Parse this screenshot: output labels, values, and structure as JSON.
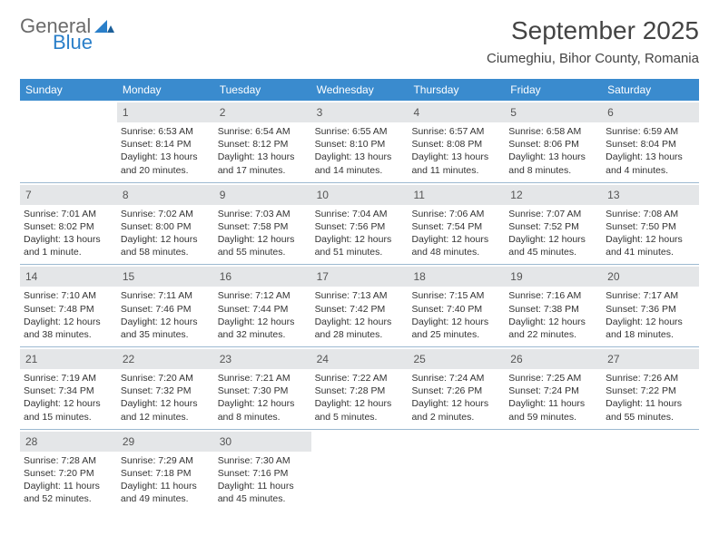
{
  "logo": {
    "general": "General",
    "blue": "Blue",
    "tri_color": "#2a7fc9"
  },
  "colors": {
    "header_bg": "#3a8bce",
    "header_text": "#ffffff",
    "daynum_bg": "#e4e6e8",
    "daynum_text": "#555555",
    "body_text": "#333333",
    "divider": "#9cb9d1"
  },
  "title": "September 2025",
  "location": "Ciumeghiu, Bihor County, Romania",
  "dow": [
    "Sunday",
    "Monday",
    "Tuesday",
    "Wednesday",
    "Thursday",
    "Friday",
    "Saturday"
  ],
  "weeks": [
    [
      {
        "num": ""
      },
      {
        "num": "1",
        "sunrise": "Sunrise: 6:53 AM",
        "sunset": "Sunset: 8:14 PM",
        "day1": "Daylight: 13 hours",
        "day2": "and 20 minutes."
      },
      {
        "num": "2",
        "sunrise": "Sunrise: 6:54 AM",
        "sunset": "Sunset: 8:12 PM",
        "day1": "Daylight: 13 hours",
        "day2": "and 17 minutes."
      },
      {
        "num": "3",
        "sunrise": "Sunrise: 6:55 AM",
        "sunset": "Sunset: 8:10 PM",
        "day1": "Daylight: 13 hours",
        "day2": "and 14 minutes."
      },
      {
        "num": "4",
        "sunrise": "Sunrise: 6:57 AM",
        "sunset": "Sunset: 8:08 PM",
        "day1": "Daylight: 13 hours",
        "day2": "and 11 minutes."
      },
      {
        "num": "5",
        "sunrise": "Sunrise: 6:58 AM",
        "sunset": "Sunset: 8:06 PM",
        "day1": "Daylight: 13 hours",
        "day2": "and 8 minutes."
      },
      {
        "num": "6",
        "sunrise": "Sunrise: 6:59 AM",
        "sunset": "Sunset: 8:04 PM",
        "day1": "Daylight: 13 hours",
        "day2": "and 4 minutes."
      }
    ],
    [
      {
        "num": "7",
        "sunrise": "Sunrise: 7:01 AM",
        "sunset": "Sunset: 8:02 PM",
        "day1": "Daylight: 13 hours",
        "day2": "and 1 minute."
      },
      {
        "num": "8",
        "sunrise": "Sunrise: 7:02 AM",
        "sunset": "Sunset: 8:00 PM",
        "day1": "Daylight: 12 hours",
        "day2": "and 58 minutes."
      },
      {
        "num": "9",
        "sunrise": "Sunrise: 7:03 AM",
        "sunset": "Sunset: 7:58 PM",
        "day1": "Daylight: 12 hours",
        "day2": "and 55 minutes."
      },
      {
        "num": "10",
        "sunrise": "Sunrise: 7:04 AM",
        "sunset": "Sunset: 7:56 PM",
        "day1": "Daylight: 12 hours",
        "day2": "and 51 minutes."
      },
      {
        "num": "11",
        "sunrise": "Sunrise: 7:06 AM",
        "sunset": "Sunset: 7:54 PM",
        "day1": "Daylight: 12 hours",
        "day2": "and 48 minutes."
      },
      {
        "num": "12",
        "sunrise": "Sunrise: 7:07 AM",
        "sunset": "Sunset: 7:52 PM",
        "day1": "Daylight: 12 hours",
        "day2": "and 45 minutes."
      },
      {
        "num": "13",
        "sunrise": "Sunrise: 7:08 AM",
        "sunset": "Sunset: 7:50 PM",
        "day1": "Daylight: 12 hours",
        "day2": "and 41 minutes."
      }
    ],
    [
      {
        "num": "14",
        "sunrise": "Sunrise: 7:10 AM",
        "sunset": "Sunset: 7:48 PM",
        "day1": "Daylight: 12 hours",
        "day2": "and 38 minutes."
      },
      {
        "num": "15",
        "sunrise": "Sunrise: 7:11 AM",
        "sunset": "Sunset: 7:46 PM",
        "day1": "Daylight: 12 hours",
        "day2": "and 35 minutes."
      },
      {
        "num": "16",
        "sunrise": "Sunrise: 7:12 AM",
        "sunset": "Sunset: 7:44 PM",
        "day1": "Daylight: 12 hours",
        "day2": "and 32 minutes."
      },
      {
        "num": "17",
        "sunrise": "Sunrise: 7:13 AM",
        "sunset": "Sunset: 7:42 PM",
        "day1": "Daylight: 12 hours",
        "day2": "and 28 minutes."
      },
      {
        "num": "18",
        "sunrise": "Sunrise: 7:15 AM",
        "sunset": "Sunset: 7:40 PM",
        "day1": "Daylight: 12 hours",
        "day2": "and 25 minutes."
      },
      {
        "num": "19",
        "sunrise": "Sunrise: 7:16 AM",
        "sunset": "Sunset: 7:38 PM",
        "day1": "Daylight: 12 hours",
        "day2": "and 22 minutes."
      },
      {
        "num": "20",
        "sunrise": "Sunrise: 7:17 AM",
        "sunset": "Sunset: 7:36 PM",
        "day1": "Daylight: 12 hours",
        "day2": "and 18 minutes."
      }
    ],
    [
      {
        "num": "21",
        "sunrise": "Sunrise: 7:19 AM",
        "sunset": "Sunset: 7:34 PM",
        "day1": "Daylight: 12 hours",
        "day2": "and 15 minutes."
      },
      {
        "num": "22",
        "sunrise": "Sunrise: 7:20 AM",
        "sunset": "Sunset: 7:32 PM",
        "day1": "Daylight: 12 hours",
        "day2": "and 12 minutes."
      },
      {
        "num": "23",
        "sunrise": "Sunrise: 7:21 AM",
        "sunset": "Sunset: 7:30 PM",
        "day1": "Daylight: 12 hours",
        "day2": "and 8 minutes."
      },
      {
        "num": "24",
        "sunrise": "Sunrise: 7:22 AM",
        "sunset": "Sunset: 7:28 PM",
        "day1": "Daylight: 12 hours",
        "day2": "and 5 minutes."
      },
      {
        "num": "25",
        "sunrise": "Sunrise: 7:24 AM",
        "sunset": "Sunset: 7:26 PM",
        "day1": "Daylight: 12 hours",
        "day2": "and 2 minutes."
      },
      {
        "num": "26",
        "sunrise": "Sunrise: 7:25 AM",
        "sunset": "Sunset: 7:24 PM",
        "day1": "Daylight: 11 hours",
        "day2": "and 59 minutes."
      },
      {
        "num": "27",
        "sunrise": "Sunrise: 7:26 AM",
        "sunset": "Sunset: 7:22 PM",
        "day1": "Daylight: 11 hours",
        "day2": "and 55 minutes."
      }
    ],
    [
      {
        "num": "28",
        "sunrise": "Sunrise: 7:28 AM",
        "sunset": "Sunset: 7:20 PM",
        "day1": "Daylight: 11 hours",
        "day2": "and 52 minutes."
      },
      {
        "num": "29",
        "sunrise": "Sunrise: 7:29 AM",
        "sunset": "Sunset: 7:18 PM",
        "day1": "Daylight: 11 hours",
        "day2": "and 49 minutes."
      },
      {
        "num": "30",
        "sunrise": "Sunrise: 7:30 AM",
        "sunset": "Sunset: 7:16 PM",
        "day1": "Daylight: 11 hours",
        "day2": "and 45 minutes."
      },
      {
        "num": ""
      },
      {
        "num": ""
      },
      {
        "num": ""
      },
      {
        "num": ""
      }
    ]
  ]
}
